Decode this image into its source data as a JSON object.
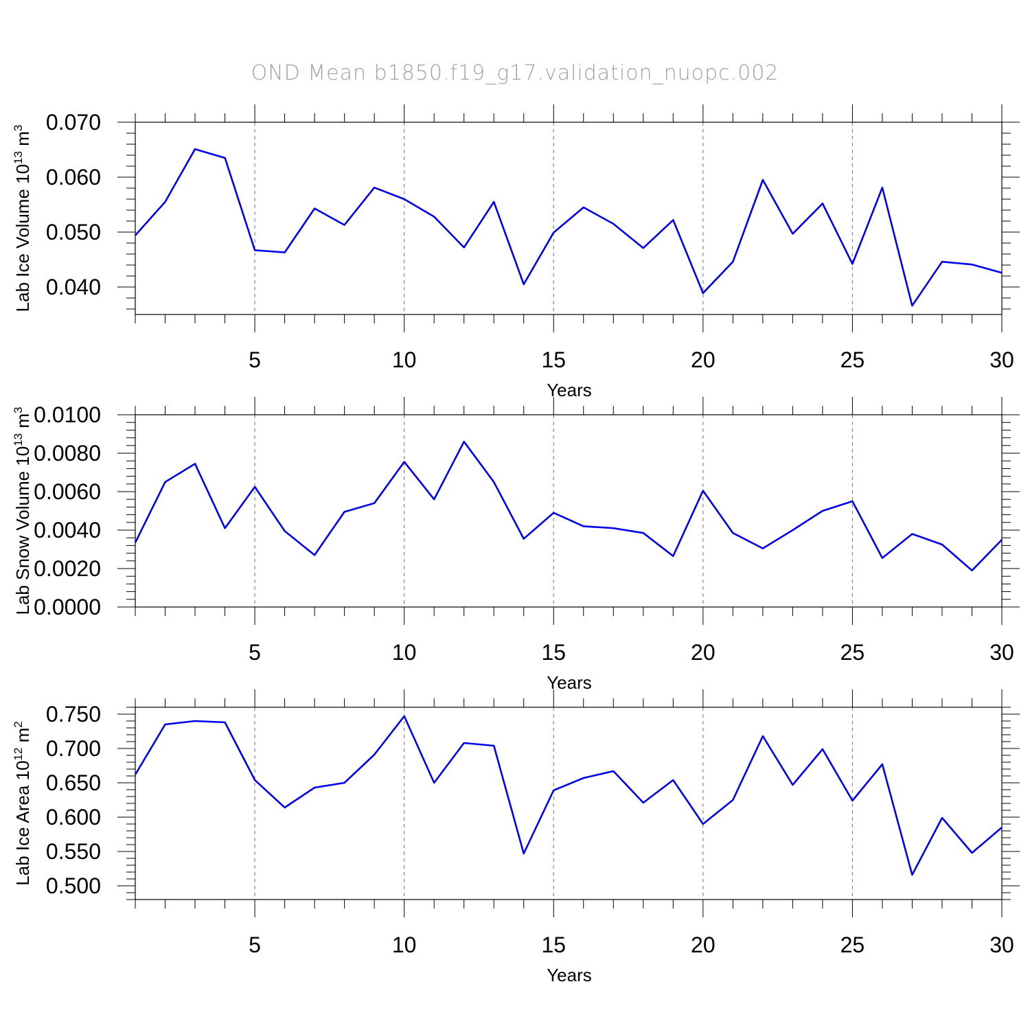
{
  "figure_title": "OND Mean b1850.f19_g17.validation_nuopc.002",
  "chart_data": [
    {
      "type": "line",
      "xlabel": "Years",
      "ylabel_main": "Lab Ice Volume 10",
      "ylabel_exp": "13",
      "ylabel_unit": " m",
      "ylabel_unit_exp": "3",
      "xlim": [
        1,
        30
      ],
      "ylim": [
        0.035,
        0.07
      ],
      "yticks": [
        0.04,
        0.05,
        0.06,
        0.07
      ],
      "ytick_labels": [
        "0.040",
        "0.050",
        "0.060",
        "0.070"
      ],
      "xticks": [
        5,
        10,
        15,
        20,
        25,
        30
      ],
      "xtick_labels": [
        "5",
        "10",
        "15",
        "20",
        "25",
        "30"
      ],
      "grid_x": [
        5,
        10,
        15,
        20,
        25
      ],
      "x": [
        1,
        2,
        3,
        4,
        5,
        6,
        7,
        8,
        9,
        10,
        11,
        12,
        13,
        14,
        15,
        16,
        17,
        18,
        19,
        20,
        21,
        22,
        23,
        24,
        25,
        26,
        27,
        28,
        29,
        30
      ],
      "values": [
        0.0494,
        0.0555,
        0.0651,
        0.0635,
        0.0467,
        0.0463,
        0.0543,
        0.0513,
        0.0581,
        0.056,
        0.0528,
        0.0472,
        0.0555,
        0.0405,
        0.0499,
        0.0545,
        0.0515,
        0.0471,
        0.0522,
        0.0389,
        0.0446,
        0.0595,
        0.0497,
        0.0552,
        0.0442,
        0.0581,
        0.0366,
        0.0446,
        0.0441,
        0.0426
      ]
    },
    {
      "type": "line",
      "xlabel": "Years",
      "ylabel_main": "Lab Snow Volume 10",
      "ylabel_exp": "13",
      "ylabel_unit": " m",
      "ylabel_unit_exp": "3",
      "xlim": [
        1,
        30
      ],
      "ylim": [
        0.0,
        0.01
      ],
      "yticks": [
        0.0,
        0.002,
        0.004,
        0.006,
        0.008,
        0.01
      ],
      "ytick_labels": [
        "0.0000",
        "0.0020",
        "0.0040",
        "0.0060",
        "0.0080",
        "0.0100"
      ],
      "xticks": [
        5,
        10,
        15,
        20,
        25,
        30
      ],
      "xtick_labels": [
        "5",
        "10",
        "15",
        "20",
        "25",
        "30"
      ],
      "grid_x": [
        5,
        10,
        15,
        20,
        25
      ],
      "x": [
        1,
        2,
        3,
        4,
        5,
        6,
        7,
        8,
        9,
        10,
        11,
        12,
        13,
        14,
        15,
        16,
        17,
        18,
        19,
        20,
        21,
        22,
        23,
        24,
        25,
        26,
        27,
        28,
        29,
        30
      ],
      "values": [
        0.00335,
        0.0065,
        0.00745,
        0.0041,
        0.00625,
        0.00395,
        0.0027,
        0.00495,
        0.0054,
        0.00755,
        0.0056,
        0.0086,
        0.0065,
        0.00355,
        0.0049,
        0.0042,
        0.0041,
        0.00385,
        0.00265,
        0.00605,
        0.00385,
        0.00305,
        0.004,
        0.005,
        0.0055,
        0.00255,
        0.0038,
        0.00325,
        0.0019,
        0.0035
      ]
    },
    {
      "type": "line",
      "xlabel": "Years",
      "ylabel_main": "Lab Ice Area 10",
      "ylabel_exp": "12",
      "ylabel_unit": " m",
      "ylabel_unit_exp": "2",
      "xlim": [
        1,
        30
      ],
      "ylim": [
        0.48,
        0.76
      ],
      "yticks": [
        0.5,
        0.55,
        0.6,
        0.65,
        0.7,
        0.75
      ],
      "ytick_labels": [
        "0.500",
        "0.550",
        "0.600",
        "0.650",
        "0.700",
        "0.750"
      ],
      "xticks": [
        5,
        10,
        15,
        20,
        25,
        30
      ],
      "xtick_labels": [
        "5",
        "10",
        "15",
        "20",
        "25",
        "30"
      ],
      "grid_x": [
        5,
        10,
        15,
        20,
        25
      ],
      "x": [
        1,
        2,
        3,
        4,
        5,
        6,
        7,
        8,
        9,
        10,
        11,
        12,
        13,
        14,
        15,
        16,
        17,
        18,
        19,
        20,
        21,
        22,
        23,
        24,
        25,
        26,
        27,
        28,
        29,
        30
      ],
      "values": [
        0.662,
        0.735,
        0.74,
        0.738,
        0.654,
        0.614,
        0.643,
        0.65,
        0.691,
        0.747,
        0.65,
        0.708,
        0.704,
        0.547,
        0.639,
        0.657,
        0.667,
        0.621,
        0.654,
        0.59,
        0.625,
        0.718,
        0.647,
        0.699,
        0.624,
        0.677,
        0.516,
        0.599,
        0.548,
        0.585
      ]
    }
  ]
}
